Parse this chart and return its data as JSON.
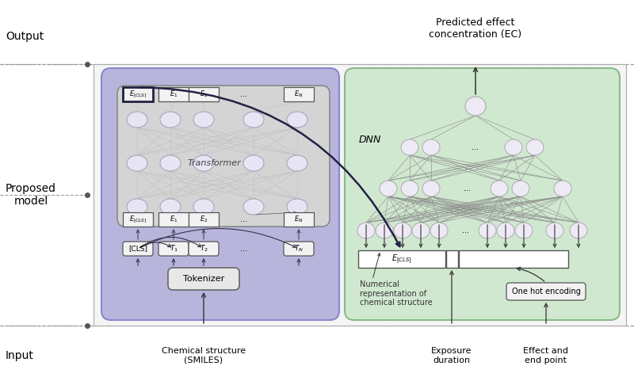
{
  "bg": "#ffffff",
  "transformer_bg": "#b8b5dd",
  "dnn_bg": "#d0e8d0",
  "inner_box_bg": "#d8d8d8",
  "node_fc": "#eeebf5",
  "node_ec": "#aaaaaa",
  "box_fc": "#f2f2f2",
  "box_ec": "#555555",
  "dark_ec": "#222244",
  "arr_col": "#333333",
  "gray_line": "#bbbbbb",
  "dnn_line": "#888888",
  "output_label": "Output",
  "proposed_label": "Proposed\nmodel",
  "input_label": "Input",
  "output_text": "Predicted effect\nconcentration (EC)",
  "transformer_text": "Transformer",
  "dnn_text": "DNN",
  "tokenizer_text": "Tokenizer",
  "num_repr_text": "Numerical\nrepresentation of\nchemical structure",
  "one_hot_text": "One hot encoding",
  "exposure_text": "Exposure\nduration",
  "effect_text": "Effect and\nend point",
  "chem_text": "Chemical structure\n(SMILES)"
}
